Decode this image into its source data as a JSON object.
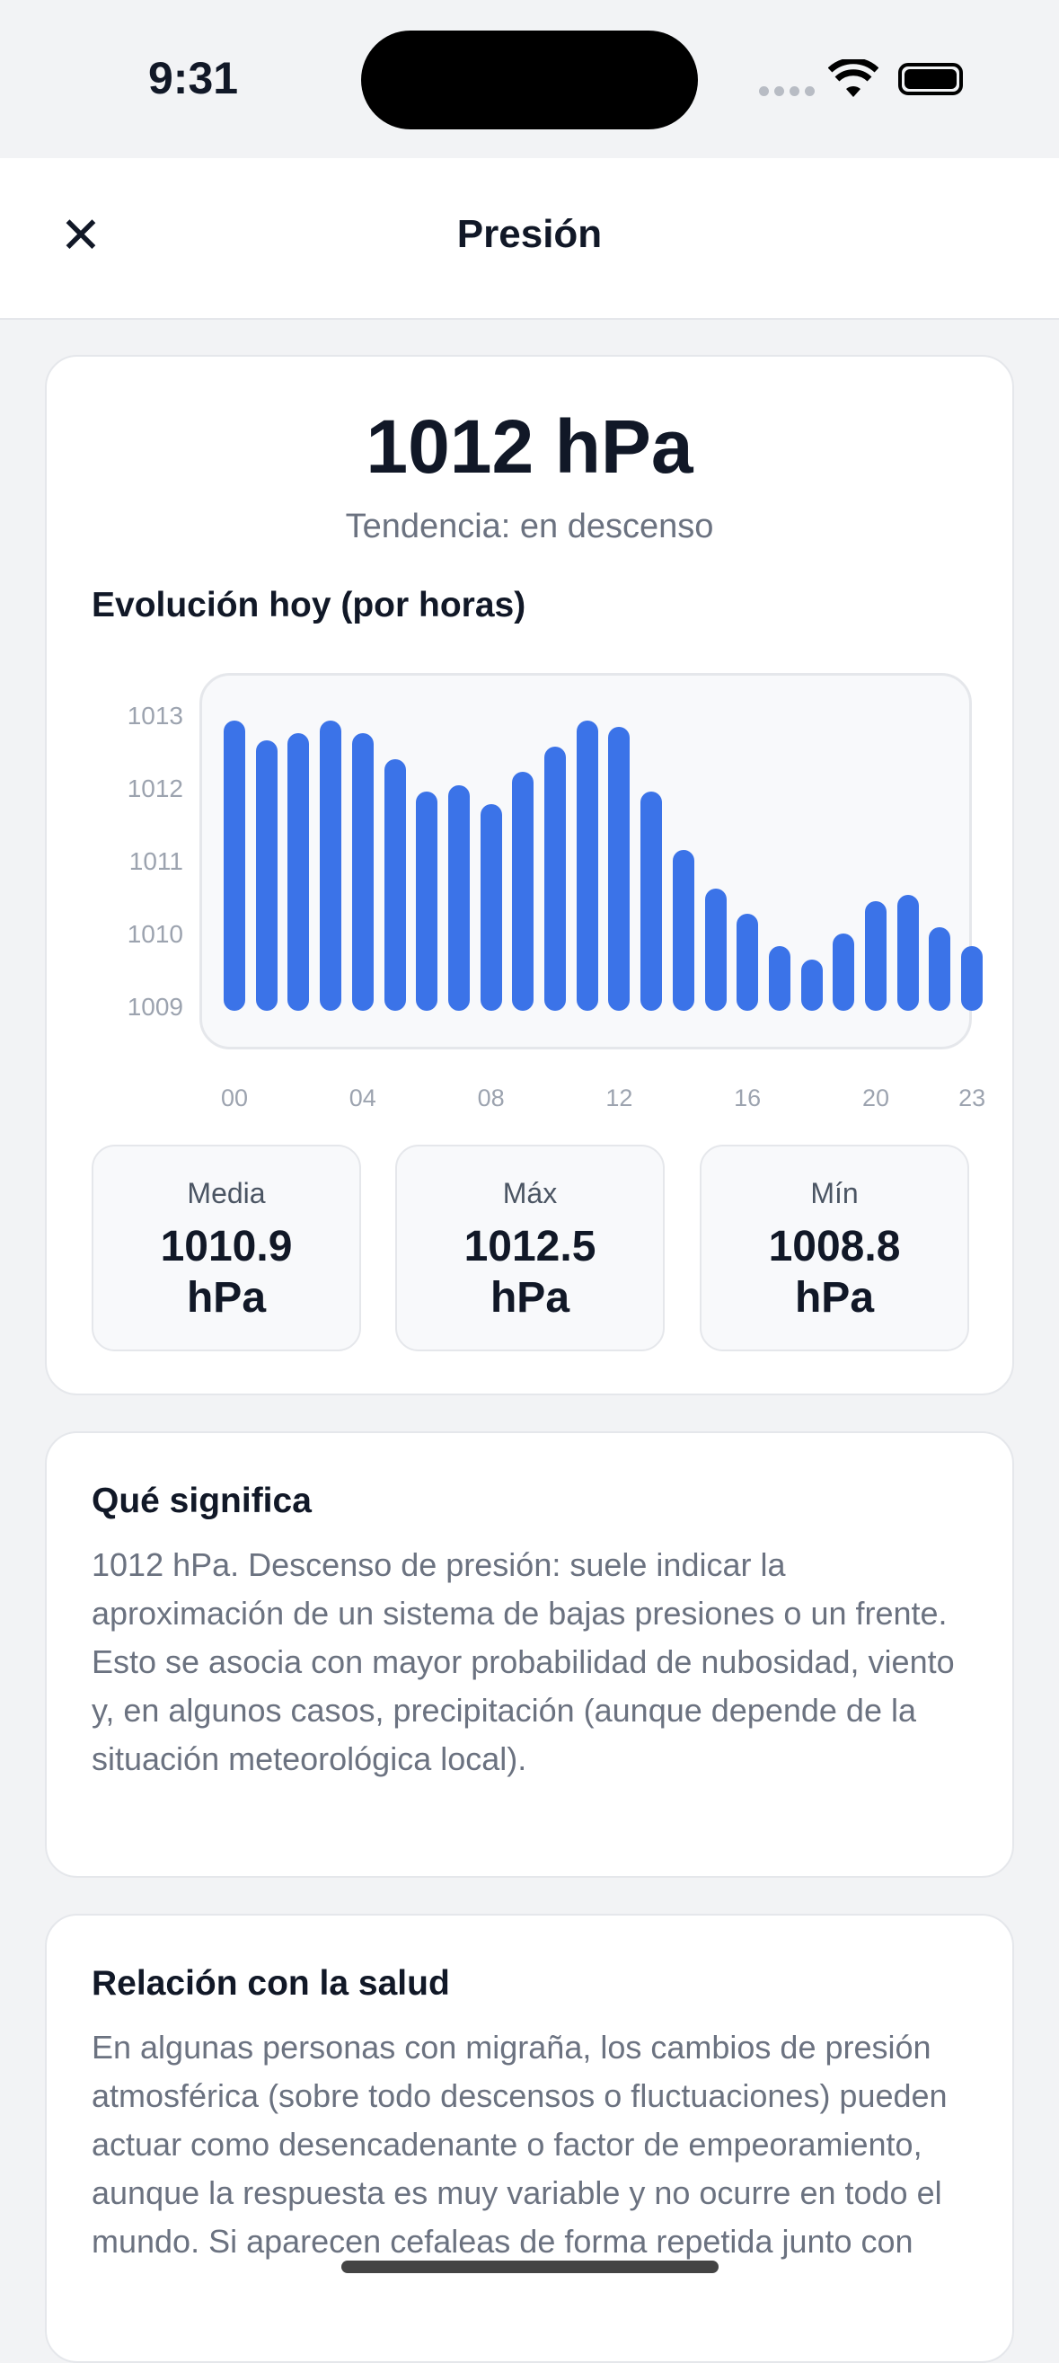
{
  "status_bar": {
    "time": "9:31",
    "icons": [
      "cellular-icon",
      "wifi-icon",
      "battery-icon"
    ]
  },
  "header": {
    "title": "Presión",
    "close_icon": "close-icon"
  },
  "summary": {
    "value": "1012 hPa",
    "trend": "Tendencia: en descenso",
    "chart_title": "Evolución hoy (por horas)",
    "stats": [
      {
        "label": "Media",
        "value": "1010.9",
        "unit": "hPa"
      },
      {
        "label": "Máx",
        "value": "1012.5",
        "unit": "hPa"
      },
      {
        "label": "Mín",
        "value": "1008.8",
        "unit": "hPa"
      }
    ]
  },
  "chart_data": {
    "type": "bar",
    "title": "Evolución hoy (por horas)",
    "x": [
      0,
      1,
      2,
      3,
      4,
      5,
      6,
      7,
      8,
      9,
      10,
      11,
      12,
      13,
      14,
      15,
      16,
      17,
      18,
      19,
      20,
      21,
      22,
      23
    ],
    "values": [
      1012.5,
      1012.2,
      1012.3,
      1012.5,
      1012.3,
      1011.9,
      1011.4,
      1011.5,
      1011.2,
      1011.7,
      1012.1,
      1012.5,
      1012.4,
      1011.4,
      1010.5,
      1009.9,
      1009.5,
      1009.0,
      1008.8,
      1009.2,
      1009.7,
      1009.8,
      1009.3,
      1009.0
    ],
    "x_tick_labels": [
      "00",
      "04",
      "08",
      "12",
      "16",
      "20",
      "23"
    ],
    "y_tick_labels": [
      "1013",
      "1012",
      "1011",
      "1010",
      "1009"
    ],
    "bar_color": "#3b73e8",
    "grid": false
  },
  "meaning": {
    "title": "Qué significa",
    "text": "1012 hPa. Descenso de presión: suele indicar la aproximación de un sistema de bajas presiones o un frente. Esto se asocia con mayor probabilidad de nubosidad, viento y, en algunos casos, precipitación (aunque depende de la situación meteorológica local)."
  },
  "health": {
    "title": "Relación con la salud",
    "text": "En algunas personas con migraña, los cambios de presión atmosférica (sobre todo descensos o fluctuaciones) pueden actuar como desencadenante o factor de empeoramiento, aunque la respuesta es muy variable y no ocurre en todo el mundo. Si aparecen cefaleas de forma repetida junto con"
  }
}
